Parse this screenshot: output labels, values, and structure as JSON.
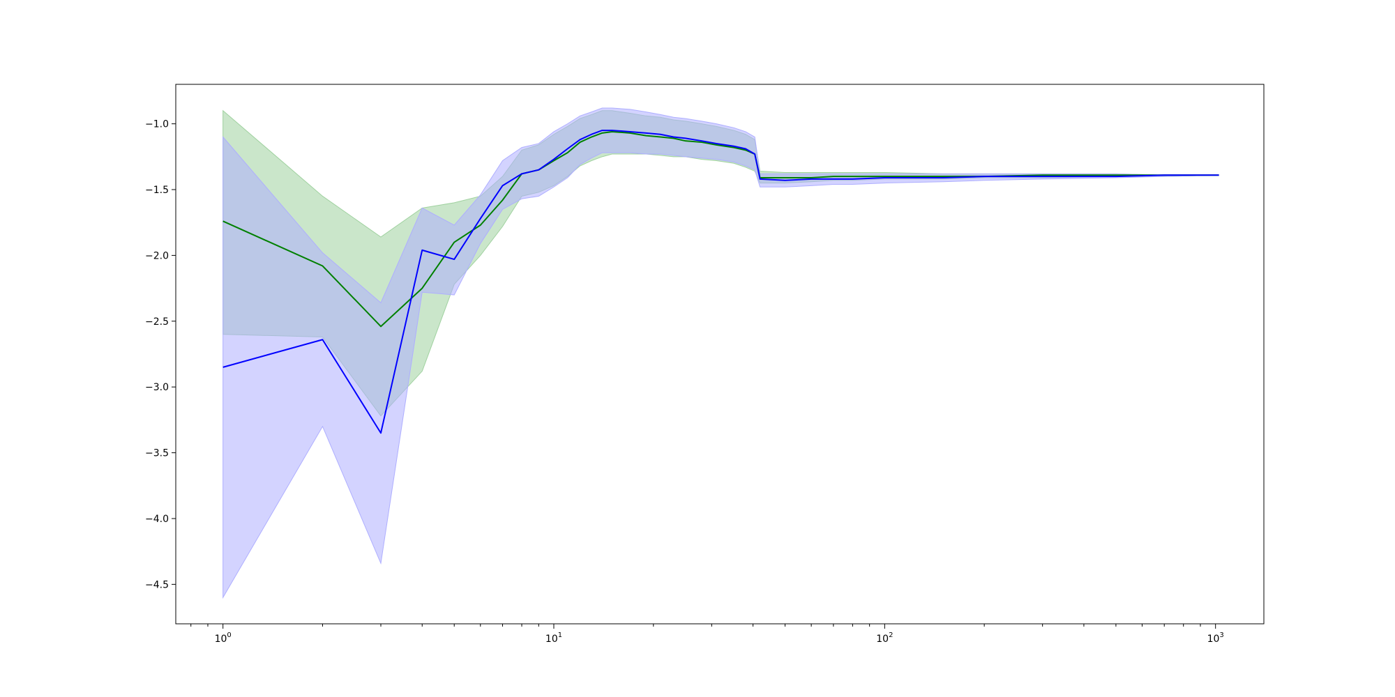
{
  "chart_data": {
    "type": "line",
    "title": "",
    "xlabel": "",
    "ylabel": "",
    "xscale": "log",
    "xlim": [
      0.72,
      1400
    ],
    "ylim": [
      -4.8,
      -0.7
    ],
    "grid": false,
    "x_major_ticks": [
      {
        "value": 1,
        "base": "10",
        "exp": "0"
      },
      {
        "value": 10,
        "base": "10",
        "exp": "1"
      },
      {
        "value": 100,
        "base": "10",
        "exp": "2"
      },
      {
        "value": 1000,
        "base": "10",
        "exp": "3"
      }
    ],
    "y_ticks": [
      {
        "value": -1.0,
        "label": "−1.0"
      },
      {
        "value": -1.5,
        "label": "−1.5"
      },
      {
        "value": -2.0,
        "label": "−2.0"
      },
      {
        "value": -2.5,
        "label": "−2.5"
      },
      {
        "value": -3.0,
        "label": "−3.0"
      },
      {
        "value": -3.5,
        "label": "−3.5"
      },
      {
        "value": -4.0,
        "label": "−4.0"
      },
      {
        "value": -4.5,
        "label": "−4.5"
      }
    ],
    "series": [
      {
        "color": "#008000",
        "band_color": "#9fd19f",
        "x": [
          1,
          2,
          3,
          4,
          5,
          6,
          7,
          8,
          9,
          10,
          11,
          12,
          13,
          14,
          15,
          17,
          19,
          21,
          23,
          25,
          28,
          31,
          35,
          38,
          40.5,
          42,
          50,
          60,
          70,
          80,
          100,
          150,
          200,
          300,
          500,
          700,
          1024
        ],
        "y": [
          -1.74,
          -2.08,
          -2.54,
          -2.25,
          -1.9,
          -1.77,
          -1.58,
          -1.38,
          -1.35,
          -1.28,
          -1.22,
          -1.14,
          -1.1,
          -1.07,
          -1.06,
          -1.07,
          -1.09,
          -1.1,
          -1.11,
          -1.13,
          -1.14,
          -1.16,
          -1.18,
          -1.2,
          -1.23,
          -1.41,
          -1.41,
          -1.41,
          -1.4,
          -1.4,
          -1.4,
          -1.4,
          -1.4,
          -1.39,
          -1.39,
          -1.39,
          -1.39
        ],
        "upper": [
          -0.9,
          -1.55,
          -1.86,
          -1.64,
          -1.6,
          -1.55,
          -1.4,
          -1.2,
          -1.16,
          -1.08,
          -1.02,
          -0.96,
          -0.93,
          -0.9,
          -0.9,
          -0.92,
          -0.94,
          -0.95,
          -0.97,
          -0.98,
          -1.0,
          -1.02,
          -1.05,
          -1.08,
          -1.12,
          -1.36,
          -1.37,
          -1.37,
          -1.37,
          -1.37,
          -1.37,
          -1.38,
          -1.38,
          -1.38,
          -1.38,
          -1.39,
          -1.39
        ],
        "lower": [
          -2.6,
          -2.62,
          -3.22,
          -2.88,
          -2.22,
          -2.0,
          -1.78,
          -1.55,
          -1.52,
          -1.47,
          -1.4,
          -1.32,
          -1.28,
          -1.25,
          -1.23,
          -1.23,
          -1.23,
          -1.24,
          -1.25,
          -1.25,
          -1.27,
          -1.28,
          -1.3,
          -1.33,
          -1.36,
          -1.45,
          -1.45,
          -1.44,
          -1.43,
          -1.43,
          -1.42,
          -1.42,
          -1.41,
          -1.41,
          -1.4,
          -1.4,
          -1.39
        ]
      },
      {
        "color": "#0000ff",
        "band_color": "#aeaeff",
        "x": [
          1,
          2,
          3,
          4,
          5,
          6,
          7,
          8,
          9,
          10,
          11,
          12,
          13,
          14,
          15,
          17,
          19,
          21,
          23,
          25,
          28,
          31,
          35,
          38,
          40.5,
          42,
          50,
          60,
          70,
          80,
          100,
          150,
          200,
          300,
          500,
          700,
          1024
        ],
        "y": [
          -2.85,
          -2.64,
          -3.35,
          -1.96,
          -2.03,
          -1.72,
          -1.47,
          -1.38,
          -1.35,
          -1.27,
          -1.19,
          -1.12,
          -1.08,
          -1.05,
          -1.05,
          -1.06,
          -1.07,
          -1.08,
          -1.1,
          -1.11,
          -1.13,
          -1.15,
          -1.17,
          -1.19,
          -1.23,
          -1.42,
          -1.43,
          -1.42,
          -1.42,
          -1.42,
          -1.41,
          -1.41,
          -1.4,
          -1.4,
          -1.4,
          -1.39,
          -1.39
        ],
        "upper": [
          -1.1,
          -1.98,
          -2.36,
          -1.64,
          -1.77,
          -1.54,
          -1.28,
          -1.18,
          -1.15,
          -1.06,
          -1.0,
          -0.94,
          -0.91,
          -0.88,
          -0.88,
          -0.89,
          -0.91,
          -0.93,
          -0.95,
          -0.96,
          -0.98,
          -1.0,
          -1.03,
          -1.06,
          -1.1,
          -1.38,
          -1.38,
          -1.38,
          -1.38,
          -1.38,
          -1.38,
          -1.38,
          -1.38,
          -1.38,
          -1.38,
          -1.39,
          -1.39
        ],
        "lower": [
          -4.6,
          -3.3,
          -4.34,
          -2.28,
          -2.3,
          -1.91,
          -1.65,
          -1.57,
          -1.55,
          -1.48,
          -1.41,
          -1.31,
          -1.26,
          -1.22,
          -1.22,
          -1.22,
          -1.23,
          -1.23,
          -1.24,
          -1.25,
          -1.26,
          -1.27,
          -1.29,
          -1.32,
          -1.35,
          -1.48,
          -1.48,
          -1.47,
          -1.46,
          -1.46,
          -1.45,
          -1.44,
          -1.43,
          -1.42,
          -1.41,
          -1.4,
          -1.39
        ]
      }
    ]
  }
}
